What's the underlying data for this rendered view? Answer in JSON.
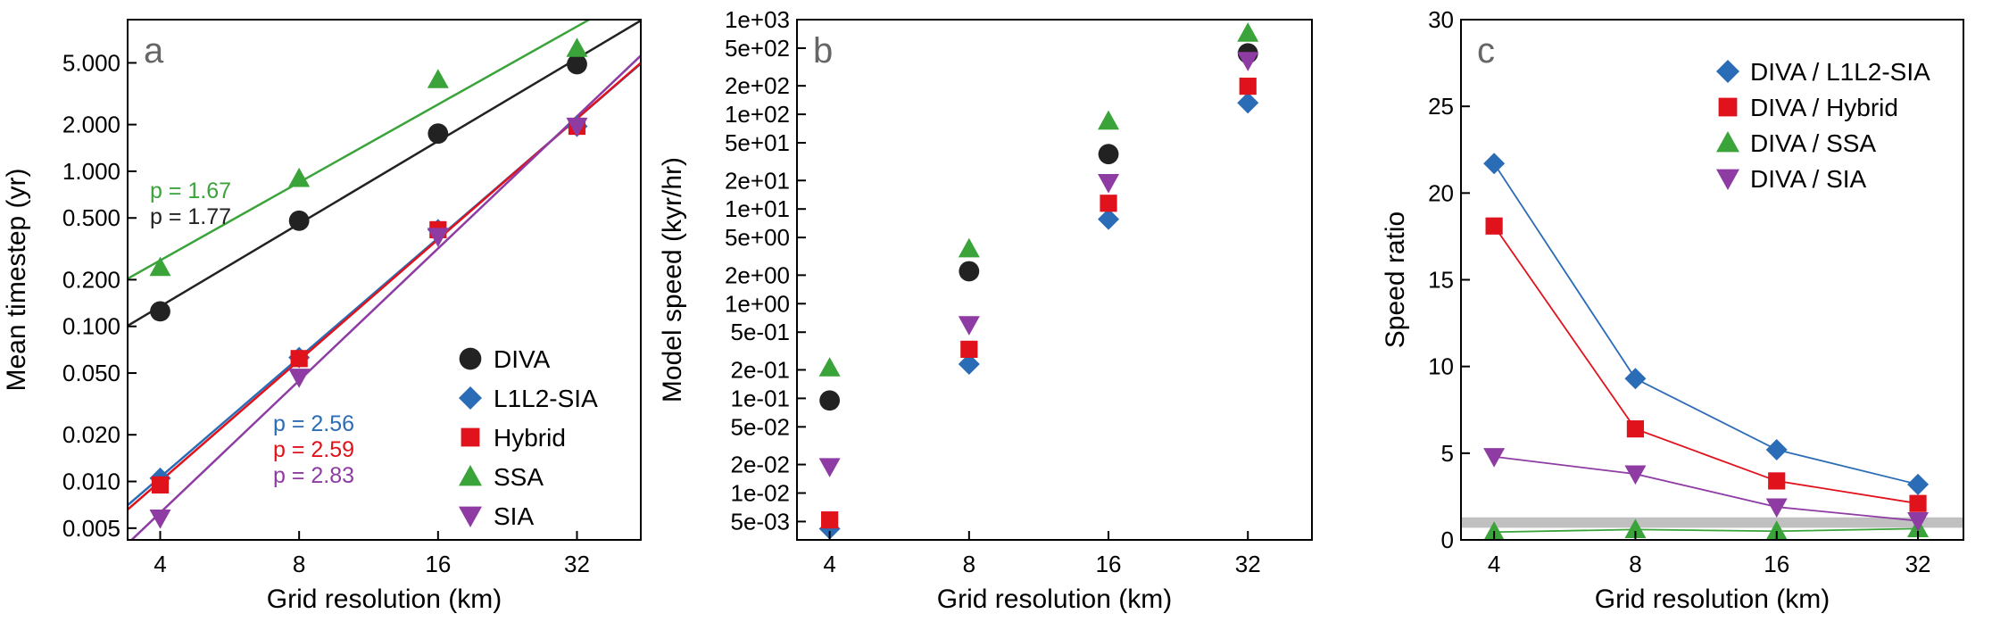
{
  "chart_data": [
    {
      "id": "a",
      "type": "scatter",
      "panel_label": "a",
      "xlabel": "Grid resolution (km)",
      "ylabel": "Mean timestep (yr)",
      "xscale": "log",
      "yscale": "log",
      "xlim": [
        3.4,
        44
      ],
      "ylim": [
        0.0042,
        9.5
      ],
      "xticks": [
        4,
        8,
        16,
        32
      ],
      "xticklabels": [
        "4",
        "8",
        "16",
        "32"
      ],
      "yticks": [
        0.005,
        0.01,
        0.02,
        0.05,
        0.1,
        0.2,
        0.5,
        1,
        2,
        5
      ],
      "yticklabels": [
        "0.005",
        "0.010",
        "0.020",
        "0.050",
        "0.100",
        "0.200",
        "0.500",
        "1.000",
        "2.000",
        "5.000"
      ],
      "legend_position": "bottom-right",
      "series": [
        {
          "name": "DIVA",
          "marker": "circle",
          "color": "#222222",
          "x": [
            4,
            8,
            16,
            32
          ],
          "y": [
            0.125,
            0.48,
            1.75,
            4.9
          ],
          "fit_exponent": 1.77
        },
        {
          "name": "L1L2-SIA",
          "marker": "diamond",
          "color": "#2a6cb5",
          "x": [
            4,
            8,
            16,
            32
          ],
          "y": [
            0.0105,
            0.063,
            0.42,
            1.95
          ],
          "fit_exponent": 2.56
        },
        {
          "name": "Hybrid",
          "marker": "square",
          "color": "#e0121c",
          "x": [
            4,
            8,
            16,
            32
          ],
          "y": [
            0.0095,
            0.062,
            0.42,
            1.95
          ],
          "fit_exponent": 2.59
        },
        {
          "name": "SSA",
          "marker": "triangle-up",
          "color": "#3aa33a",
          "x": [
            4,
            8,
            16,
            32
          ],
          "y": [
            0.24,
            0.9,
            3.9,
            6.2
          ],
          "fit_exponent": 1.67
        },
        {
          "name": "SIA",
          "marker": "triangle-down",
          "color": "#8e3ca3",
          "x": [
            4,
            8,
            16,
            32
          ],
          "y": [
            0.0058,
            0.047,
            0.38,
            1.95
          ],
          "fit_exponent": 2.83
        }
      ],
      "annotations_upper": [
        {
          "text": "p = 1.67",
          "color": "#3aa33a"
        },
        {
          "text": "p = 1.77",
          "color": "#222222"
        }
      ],
      "annotations_lower": [
        {
          "text": "p = 2.56",
          "color": "#2a6cb5"
        },
        {
          "text": "p = 2.59",
          "color": "#e0121c"
        },
        {
          "text": "p = 2.83",
          "color": "#8e3ca3"
        }
      ]
    },
    {
      "id": "b",
      "type": "scatter",
      "panel_label": "b",
      "xlabel": "Grid resolution (km)",
      "ylabel": "Model speed (kyr/hr)",
      "xscale": "log",
      "yscale": "log",
      "xlim": [
        3.4,
        44
      ],
      "ylim": [
        0.0032,
        1000
      ],
      "xticks": [
        4,
        8,
        16,
        32
      ],
      "xticklabels": [
        "4",
        "8",
        "16",
        "32"
      ],
      "yticks": [
        0.005,
        0.01,
        0.02,
        0.05,
        0.1,
        0.2,
        0.5,
        1,
        2,
        5,
        10,
        20,
        50,
        100,
        200,
        500,
        1000
      ],
      "yticklabels": [
        "5e-03",
        "1e-02",
        "2e-02",
        "5e-02",
        "1e-01",
        "2e-01",
        "5e-01",
        "1e+00",
        "2e+00",
        "5e+00",
        "1e+01",
        "2e+01",
        "5e+01",
        "1e+02",
        "2e+02",
        "5e+02",
        "1e+03"
      ],
      "series": [
        {
          "name": "DIVA",
          "marker": "circle",
          "color": "#222222",
          "x": [
            4,
            8,
            16,
            32
          ],
          "y": [
            0.095,
            2.2,
            38,
            440
          ]
        },
        {
          "name": "L1L2-SIA",
          "marker": "diamond",
          "color": "#2a6cb5",
          "x": [
            4,
            8,
            16,
            32
          ],
          "y": [
            0.0042,
            0.23,
            7.8,
            132
          ]
        },
        {
          "name": "Hybrid",
          "marker": "square",
          "color": "#e0121c",
          "x": [
            4,
            8,
            16,
            32
          ],
          "y": [
            0.0052,
            0.33,
            11.5,
            198
          ]
        },
        {
          "name": "SSA",
          "marker": "triangle-up",
          "color": "#3aa33a",
          "x": [
            4,
            8,
            16,
            32
          ],
          "y": [
            0.21,
            3.8,
            85,
            720
          ]
        },
        {
          "name": "SIA",
          "marker": "triangle-down",
          "color": "#8e3ca3",
          "x": [
            4,
            8,
            16,
            32
          ],
          "y": [
            0.019,
            0.6,
            19,
            370
          ]
        }
      ]
    },
    {
      "id": "c",
      "type": "line",
      "panel_label": "c",
      "xlabel": "Grid resolution (km)",
      "ylabel": "Speed ratio",
      "xscale": "log",
      "yscale": "linear",
      "xlim": [
        3.4,
        40
      ],
      "ylim": [
        0,
        30
      ],
      "xticks": [
        4,
        8,
        16,
        32
      ],
      "xticklabels": [
        "4",
        "8",
        "16",
        "32"
      ],
      "yticks": [
        0,
        5,
        10,
        15,
        20,
        25,
        30
      ],
      "yticklabels": [
        "0",
        "5",
        "10",
        "15",
        "20",
        "25",
        "30"
      ],
      "reference_band": [
        0.7,
        1.3
      ],
      "reference_band_color": "#c0c0c0",
      "legend_position": "top-right",
      "series": [
        {
          "name": "DIVA / L1L2-SIA",
          "marker": "diamond",
          "color": "#2a6cb5",
          "x": [
            4,
            8,
            16,
            32
          ],
          "y": [
            21.7,
            9.3,
            5.2,
            3.2
          ]
        },
        {
          "name": "DIVA / Hybrid",
          "marker": "square",
          "color": "#e0121c",
          "x": [
            4,
            8,
            16,
            32
          ],
          "y": [
            18.1,
            6.4,
            3.4,
            2.1
          ]
        },
        {
          "name": "DIVA / SSA",
          "marker": "triangle-up",
          "color": "#3aa33a",
          "x": [
            4,
            8,
            16,
            32
          ],
          "y": [
            0.45,
            0.6,
            0.5,
            0.65
          ]
        },
        {
          "name": "DIVA / SIA",
          "marker": "triangle-down",
          "color": "#8e3ca3",
          "x": [
            4,
            8,
            16,
            32
          ],
          "y": [
            4.8,
            3.8,
            1.9,
            1.1
          ]
        }
      ]
    }
  ]
}
